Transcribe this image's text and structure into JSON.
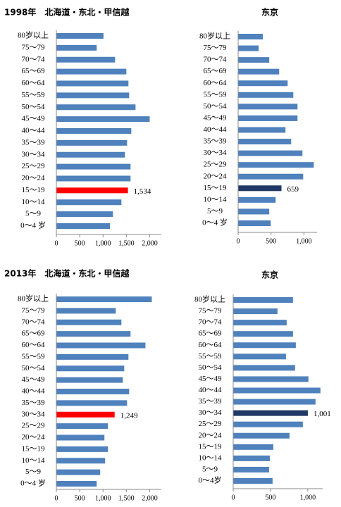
{
  "chart_data": [
    {
      "type": "bar",
      "title": "1998年　北海道・东北・甲信越",
      "categories": [
        "80岁以上",
        "75～79",
        "70～74",
        "65～69",
        "60～64",
        "55～59",
        "50～54",
        "45～49",
        "40～44",
        "35～39",
        "30～34",
        "25～29",
        "20～24",
        "15～19",
        "10～14",
        "5～9",
        "0～4 岁"
      ],
      "values": [
        1010,
        864,
        1258,
        1500,
        1545,
        1560,
        1697,
        2000,
        1606,
        1515,
        1470,
        1590,
        1590,
        1534,
        1394,
        1212,
        1150
      ],
      "value_labels": [
        null,
        null,
        null,
        null,
        null,
        null,
        null,
        null,
        null,
        null,
        null,
        null,
        null,
        "1,534",
        null,
        null,
        null
      ],
      "color": "#4f81bd",
      "highlight_color": "#ff0000",
      "xlim": [
        0,
        2250
      ],
      "xticks": [
        0,
        500,
        {
          "value": 1000,
          "label": "1,000"
        },
        {
          "value": 1500,
          "label": "1,500"
        },
        {
          "value": 2000,
          "label": "2,000"
        }
      ]
    },
    {
      "type": "bar",
      "title": "东京",
      "categories": [
        "80岁以上",
        "75～79",
        "70～74",
        "65～69",
        "60～64",
        "55～59",
        "50～54",
        "45～49",
        "40～44",
        "35～39",
        "30～34",
        "25～29",
        "20～24",
        "15～19",
        "10～14",
        "5～9",
        "0～4 岁"
      ],
      "values": [
        376,
        312,
        473,
        624,
        753,
        839,
        903,
        903,
        720,
        806,
        978,
        1150,
        989,
        659,
        570,
        473,
        495
      ],
      "value_labels": [
        null,
        null,
        null,
        null,
        null,
        null,
        null,
        null,
        null,
        null,
        null,
        null,
        null,
        "659",
        null,
        null,
        null
      ],
      "color": "#4f81bd",
      "highlight_color": "#1f3864",
      "xlim": [
        0,
        1200
      ],
      "xticks": [
        0,
        500,
        {
          "value": 1000,
          "label": "1,000"
        }
      ]
    },
    {
      "type": "bar",
      "title": "2013年　北海道・东北・甲信越",
      "categories": [
        "80岁以上",
        "75～79",
        "70～74",
        "65～69",
        "60～64",
        "55～59",
        "50～54",
        "45～49",
        "40～44",
        "35～39",
        "30～34",
        "25～29",
        "20～24",
        "15～19",
        "10～14",
        "5～9",
        "0～4 岁"
      ],
      "values": [
        2045,
        1273,
        1394,
        1590,
        1909,
        1545,
        1455,
        1424,
        1560,
        1515,
        1249,
        1106,
        1030,
        1106,
        1045,
        939,
        864
      ],
      "value_labels": [
        null,
        null,
        null,
        null,
        null,
        null,
        null,
        null,
        null,
        null,
        "1,249",
        null,
        null,
        null,
        null,
        null,
        null
      ],
      "color": "#4f81bd",
      "highlight_color": "#ff0000",
      "xlim": [
        0,
        2250
      ],
      "xticks": [
        0,
        500,
        {
          "value": 1000,
          "label": "1,000"
        },
        {
          "value": 1500,
          "label": "1,500"
        },
        {
          "value": 2000,
          "label": "2,000"
        }
      ]
    },
    {
      "type": "bar",
      "title": "东京",
      "categories": [
        "80岁以上",
        "75～79",
        "70～74",
        "65～69",
        "60～64",
        "55～59",
        "50～54",
        "45～49",
        "40～44",
        "35～39",
        "30～34",
        "25～29",
        "20～24",
        "15～19",
        "10～14",
        "5～9",
        "0～4岁"
      ],
      "values": [
        802,
        594,
        717,
        802,
        840,
        708,
        830,
        1009,
        1170,
        1104,
        1001,
        934,
        755,
        538,
        491,
        481,
        528
      ],
      "value_labels": [
        null,
        null,
        null,
        null,
        null,
        null,
        null,
        null,
        null,
        null,
        "1,001",
        null,
        null,
        null,
        null,
        null,
        null
      ],
      "color": "#4f81bd",
      "highlight_color": "#1f3864",
      "xlim": [
        0,
        1200
      ],
      "xticks": [
        0,
        500,
        {
          "value": 1000,
          "label": "1,000"
        }
      ]
    }
  ]
}
